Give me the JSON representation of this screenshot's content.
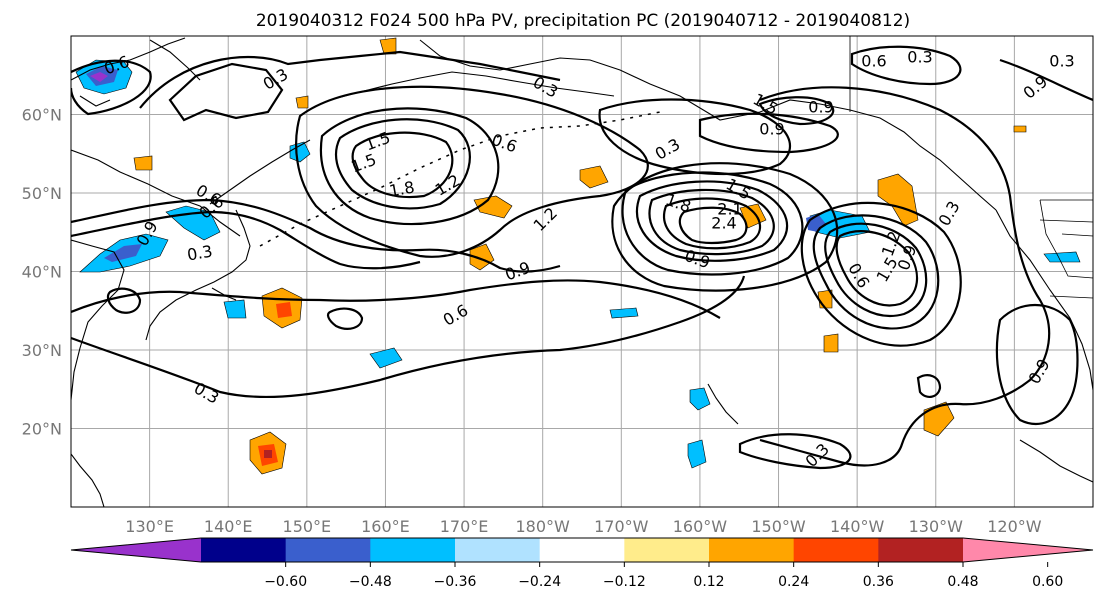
{
  "title": "2019040312 F024 500 hPa PV, precipitation PC (2019040712 - 2019040812)",
  "map": {
    "lon_labels": [
      "130°E",
      "140°E",
      "150°E",
      "160°E",
      "170°E",
      "180°W",
      "170°W",
      "160°W",
      "150°W",
      "140°W",
      "130°W",
      "120°W"
    ],
    "lat_labels": [
      "20°N",
      "30°N",
      "40°N",
      "50°N",
      "60°N"
    ],
    "lon_range": [
      120,
      250
    ],
    "lat_range": [
      10,
      70
    ],
    "contour_labels": [
      "0.6",
      "0.3",
      "0.3",
      "0.6",
      "0.3",
      "0.9",
      "1.5",
      "1.8",
      "1.2",
      "0.6",
      "1.5",
      "0.6",
      "0.9",
      "1.2",
      "0.3",
      "1.8",
      "1.5",
      "2.1",
      "2.4",
      "0.9",
      "1.5",
      "1.2",
      "0.6",
      "0.9",
      "0.3",
      "0.9",
      "0.6",
      "0.3",
      "0.3",
      "0.3",
      "0.9",
      "1.5",
      "0.9",
      "0.9",
      "0.6",
      "0.3"
    ]
  },
  "colorbar": {
    "ticks": [
      "−0.60",
      "−0.48",
      "−0.36",
      "−0.24",
      "−0.12",
      "0.12",
      "0.24",
      "0.36",
      "0.48",
      "0.60"
    ],
    "colors": [
      "#9932cc",
      "#00008b",
      "#3a5fcd",
      "#00bfff",
      "#b0e2ff",
      "#ffffff",
      "#ffec8b",
      "#ffa500",
      "#ff4500",
      "#b22222",
      "#ff88aa"
    ]
  }
}
